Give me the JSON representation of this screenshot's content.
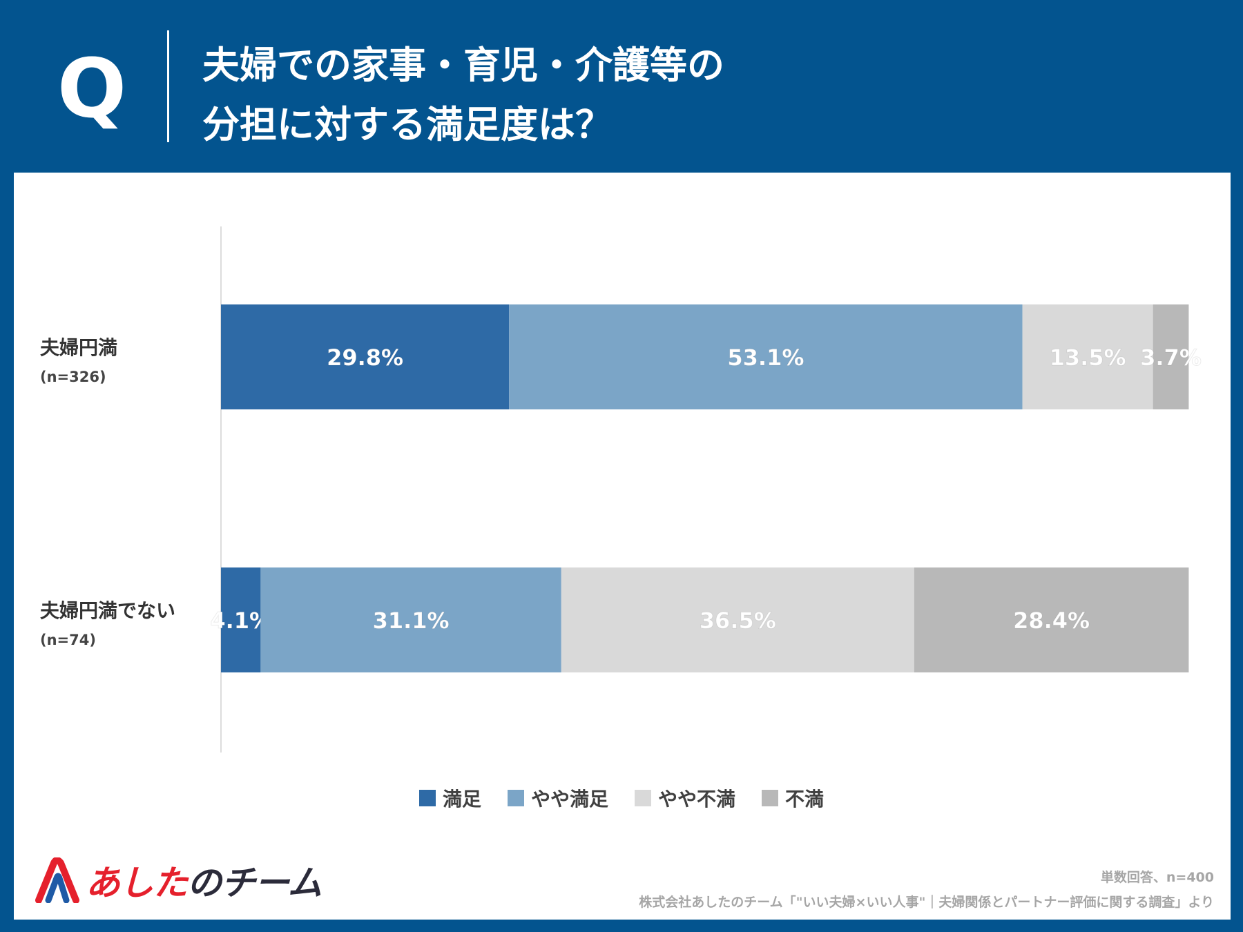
{
  "header": {
    "q_label": "Q",
    "title_line1": "夫婦での家事・育児・介護等の",
    "title_line2": "分担に対する満足度は？"
  },
  "chart_data": {
    "type": "bar",
    "orientation": "horizontal",
    "stacked": true,
    "categories": [
      "夫婦円満",
      "夫婦円満でない"
    ],
    "category_counts": [
      "(n=326)",
      "(n=74)"
    ],
    "series": [
      {
        "name": "満足",
        "color": "#2E6AA6",
        "values": [
          29.8,
          4.1
        ],
        "labels": [
          "29.8%",
          "4.1%"
        ]
      },
      {
        "name": "やや満足",
        "color": "#7BA5C7",
        "values": [
          53.1,
          31.1
        ],
        "labels": [
          "53.1%",
          "31.1%"
        ]
      },
      {
        "name": "やや不満",
        "color": "#D9D9D9",
        "values": [
          13.5,
          36.5
        ],
        "labels": [
          "13.5%",
          "36.5%"
        ]
      },
      {
        "name": "不満",
        "color": "#B8B8B8",
        "values": [
          3.7,
          28.4
        ],
        "labels": [
          "3.7%",
          "28.4%"
        ]
      }
    ],
    "xlim": [
      0,
      100
    ],
    "unit": "%",
    "legend_position": "bottom"
  },
  "footer": {
    "logo_text_accent": "あした",
    "logo_text_rest": "のチーム",
    "note": "単数回答、n=400",
    "source": "株式会社あしたのチーム「\"いい夫婦×いい人事\"｜夫婦関係とパートナー評価に関する調査」より"
  }
}
